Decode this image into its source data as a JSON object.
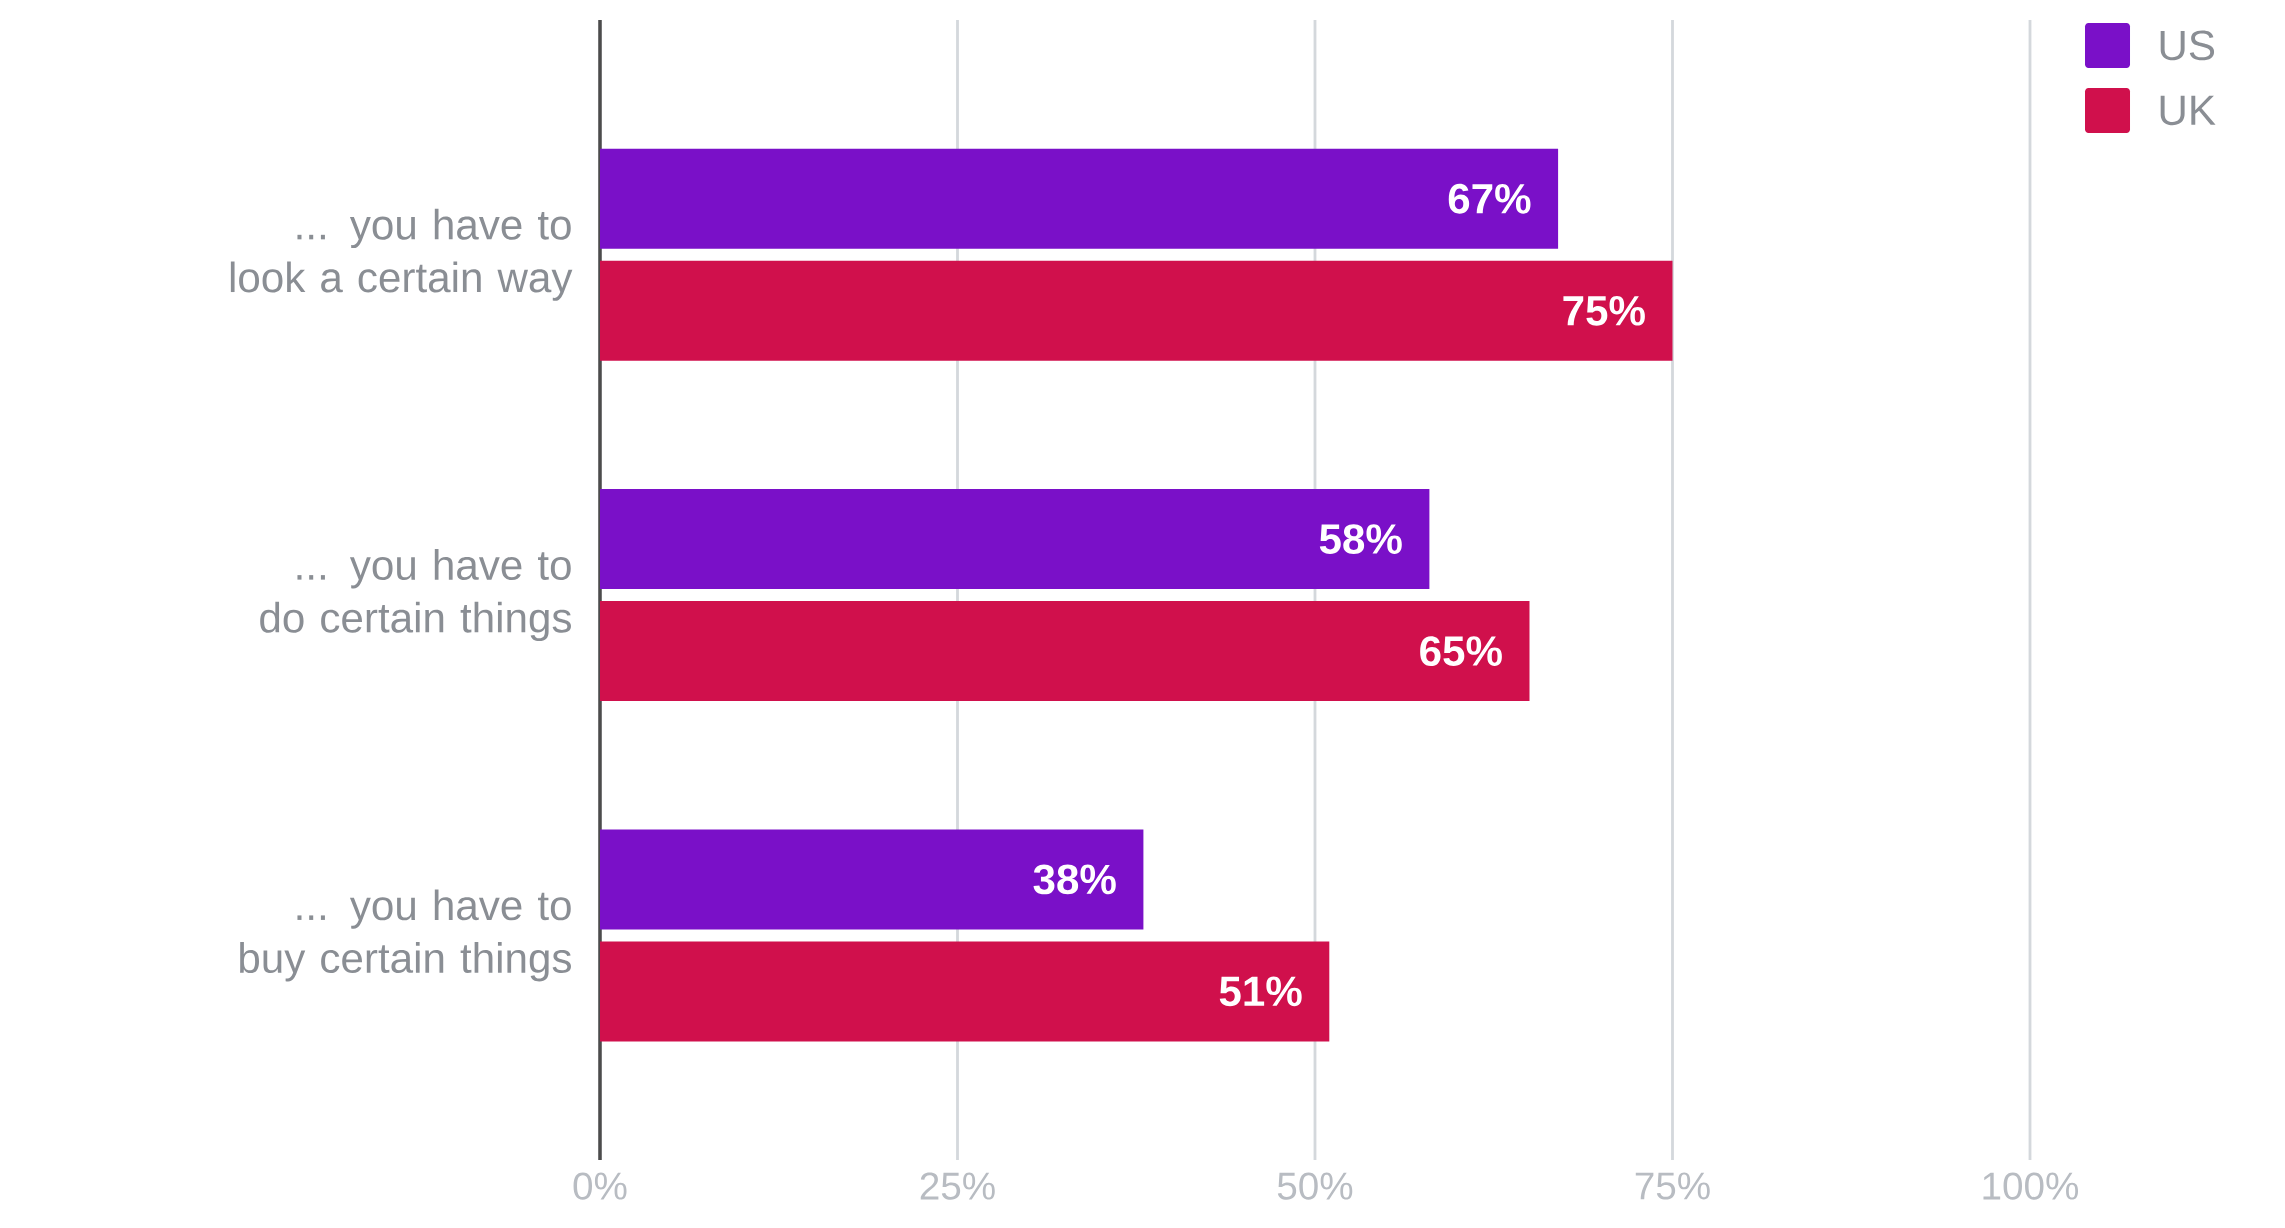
{
  "chart_data": {
    "type": "bar",
    "orientation": "horizontal",
    "categories": [
      "... you have to look a certain way",
      "... you have to do certain things",
      "... you have to buy certain things"
    ],
    "series": [
      {
        "name": "US",
        "color": "#7a10c8",
        "values": [
          67,
          58,
          38
        ],
        "value_labels": [
          "67%",
          "58%",
          "38%"
        ]
      },
      {
        "name": "UK",
        "color": "#d0104c",
        "values": [
          75,
          65,
          51
        ],
        "value_labels": [
          "75%",
          "65%",
          "51%"
        ]
      }
    ],
    "xlim": [
      0,
      100
    ],
    "xticks": [
      {
        "value": 0,
        "label": "0%"
      },
      {
        "value": 25,
        "label": "25%"
      },
      {
        "value": 50,
        "label": "50%"
      },
      {
        "value": 75,
        "label": "75%"
      },
      {
        "value": 100,
        "label": "100%"
      }
    ],
    "grid": "x",
    "legend": "top right"
  }
}
